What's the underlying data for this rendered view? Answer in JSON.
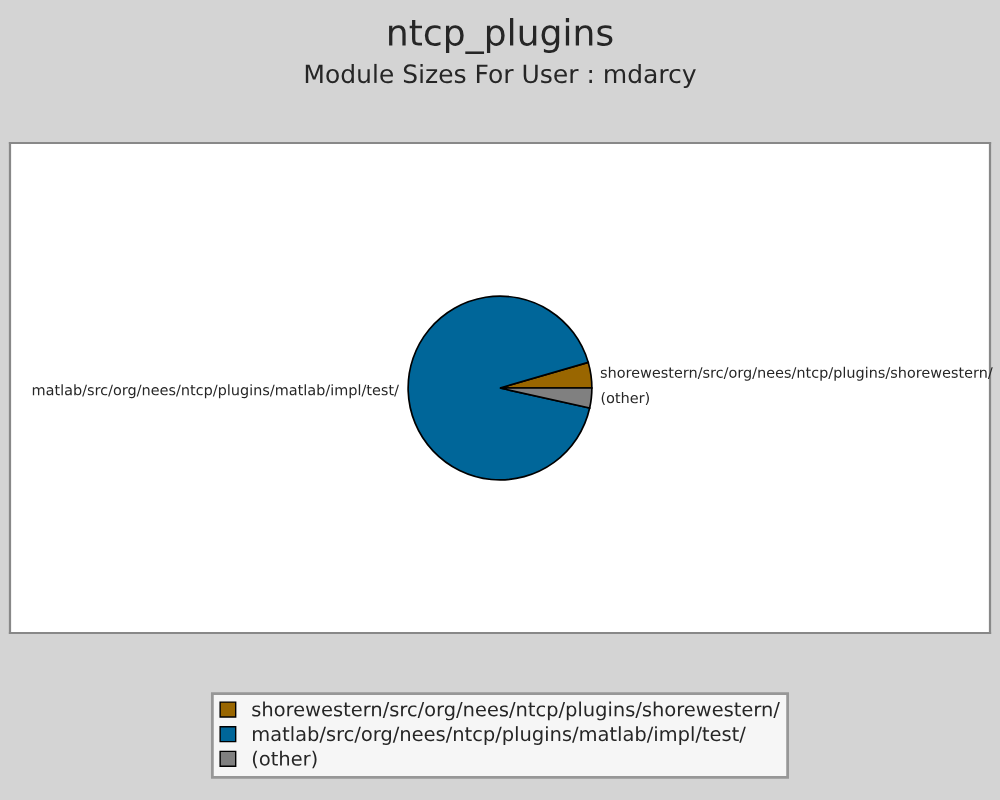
{
  "chart_data": {
    "type": "pie",
    "title": "ntcp_plugins",
    "subtitle": "Module Sizes For User : mdarcy",
    "categories": [
      "shorewestern/src/org/nees/ntcp/plugins/shorewestern/",
      "matlab/src/org/nees/ntcp/plugins/matlab/impl/test/",
      "(other)"
    ],
    "values": [
      4.5,
      92,
      3.5
    ],
    "colors": [
      "#996600",
      "#006699",
      "#808080"
    ],
    "legend": "bottom"
  }
}
